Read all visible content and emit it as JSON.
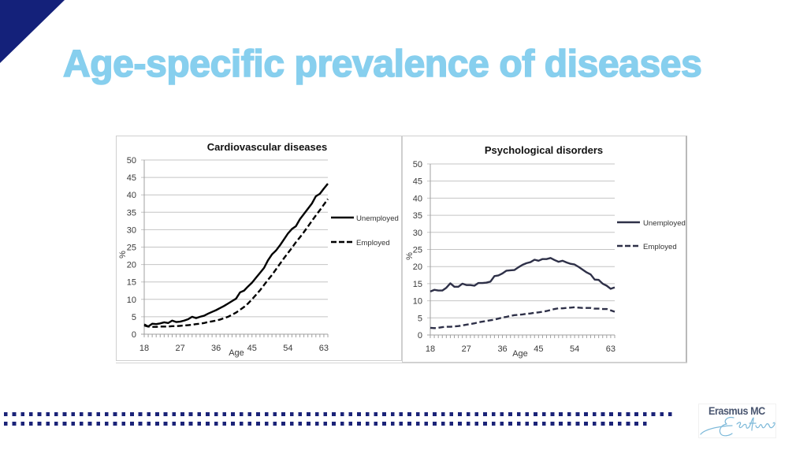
{
  "slide": {
    "title": "Age-specific prevalence of diseases",
    "colors": {
      "title": "#87cfee",
      "corner": "#14217a",
      "dots": "#1b2378"
    }
  },
  "logo": {
    "name": "Erasmus MC",
    "signature": "Erasmus"
  },
  "chart_data": [
    {
      "type": "line",
      "title": "Cardiovascular diseases",
      "xlabel": "Age",
      "ylabel": "%",
      "x": [
        18,
        19,
        20,
        21,
        22,
        23,
        24,
        25,
        26,
        27,
        28,
        29,
        30,
        31,
        32,
        33,
        34,
        35,
        36,
        37,
        38,
        39,
        40,
        41,
        42,
        43,
        44,
        45,
        46,
        47,
        48,
        49,
        50,
        51,
        52,
        53,
        54,
        55,
        56,
        57,
        58,
        59,
        60,
        61,
        62,
        63,
        64
      ],
      "xticks": [
        18,
        27,
        36,
        45,
        54,
        63
      ],
      "ylim": [
        0,
        50
      ],
      "yticks": [
        0,
        5,
        10,
        15,
        20,
        25,
        30,
        35,
        40,
        45,
        50
      ],
      "grid": true,
      "legend": "right",
      "series": [
        {
          "name": "Unemployed",
          "style": "solid",
          "color": "#000000",
          "values": [
            2.8,
            2.2,
            3.0,
            2.9,
            3.1,
            3.4,
            3.2,
            3.9,
            3.5,
            3.6,
            3.9,
            4.3,
            5.0,
            4.6,
            5.0,
            5.3,
            5.9,
            6.4,
            6.9,
            7.5,
            8.1,
            8.8,
            9.5,
            10.2,
            12.0,
            12.5,
            13.7,
            14.8,
            16.2,
            17.6,
            19.0,
            21.2,
            22.9,
            24.0,
            25.5,
            27.2,
            28.9,
            30.2,
            31.0,
            33.0,
            34.5,
            36.0,
            37.5,
            39.6,
            40.3,
            41.8,
            43.2
          ]
        },
        {
          "name": "Employed",
          "style": "dashed",
          "color": "#000000",
          "values": [
            2.5,
            2.2,
            2.1,
            2.1,
            2.2,
            2.2,
            2.2,
            2.3,
            2.3,
            2.4,
            2.5,
            2.6,
            2.7,
            2.9,
            3.0,
            3.2,
            3.5,
            3.7,
            3.9,
            4.2,
            4.6,
            5.0,
            5.6,
            6.2,
            7.0,
            7.8,
            8.8,
            10.0,
            11.3,
            12.6,
            14.1,
            15.6,
            17.0,
            18.6,
            20.2,
            21.8,
            23.3,
            24.8,
            26.4,
            27.8,
            29.3,
            30.9,
            32.5,
            34.1,
            35.6,
            37.2,
            38.8
          ]
        }
      ]
    },
    {
      "type": "line",
      "title": "Psychological disorders",
      "xlabel": "Age",
      "ylabel": "%",
      "x": [
        18,
        19,
        20,
        21,
        22,
        23,
        24,
        25,
        26,
        27,
        28,
        29,
        30,
        31,
        32,
        33,
        34,
        35,
        36,
        37,
        38,
        39,
        40,
        41,
        42,
        43,
        44,
        45,
        46,
        47,
        48,
        49,
        50,
        51,
        52,
        53,
        54,
        55,
        56,
        57,
        58,
        59,
        60,
        61,
        62,
        63,
        64
      ],
      "xticks": [
        18,
        27,
        36,
        45,
        54,
        63
      ],
      "ylim": [
        0,
        50
      ],
      "yticks": [
        0,
        5,
        10,
        15,
        20,
        25,
        30,
        35,
        40,
        45,
        50
      ],
      "grid": true,
      "legend": "right",
      "series": [
        {
          "name": "Unemployed",
          "style": "solid",
          "color": "#2e3048",
          "values": [
            12.7,
            13.2,
            13.0,
            13.0,
            13.8,
            15.1,
            14.1,
            14.1,
            15.0,
            14.6,
            14.6,
            14.4,
            15.2,
            15.2,
            15.3,
            15.6,
            17.2,
            17.4,
            18.0,
            18.8,
            18.9,
            19.0,
            19.8,
            20.5,
            21.0,
            21.3,
            22.0,
            21.7,
            22.2,
            22.2,
            22.5,
            21.9,
            21.4,
            21.7,
            21.2,
            20.8,
            20.6,
            19.9,
            19.1,
            18.3,
            17.7,
            16.2,
            16.1,
            15.0,
            14.4,
            13.5,
            13.9
          ]
        },
        {
          "name": "Employed",
          "style": "dashed",
          "color": "#2e3048",
          "values": [
            2.1,
            2.0,
            2.1,
            2.3,
            2.4,
            2.4,
            2.5,
            2.6,
            2.8,
            3.0,
            3.2,
            3.4,
            3.7,
            3.9,
            4.1,
            4.3,
            4.5,
            4.8,
            5.1,
            5.3,
            5.6,
            5.8,
            5.9,
            6.0,
            6.2,
            6.3,
            6.5,
            6.6,
            6.8,
            7.0,
            7.3,
            7.6,
            7.8,
            7.8,
            7.9,
            8.0,
            8.1,
            8.0,
            7.9,
            7.9,
            7.9,
            7.7,
            7.7,
            7.6,
            7.6,
            7.2,
            6.8
          ]
        }
      ]
    }
  ]
}
